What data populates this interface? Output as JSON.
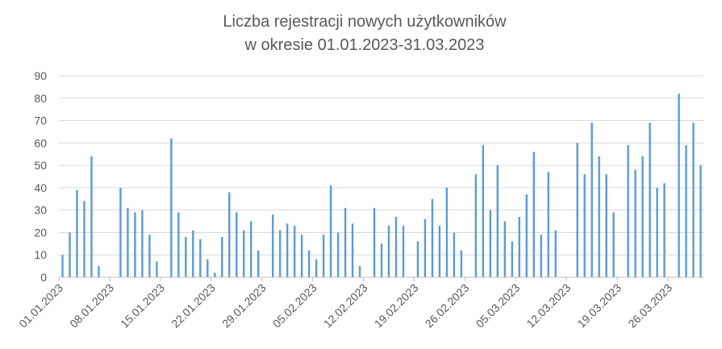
{
  "chart_data": {
    "type": "bar",
    "title_line1": "Liczba rejestracji nowych użytkowników",
    "title_line2": "w okresie 01.01.2023-31.03.2023",
    "xlabel": "",
    "ylabel": "",
    "ylim": [
      0,
      90
    ],
    "yticks": [
      0,
      10,
      20,
      30,
      40,
      50,
      60,
      70,
      80,
      90
    ],
    "grid": true,
    "legend": "none",
    "bar_color": "#5b9bd5",
    "date_start": "01.01.2023",
    "date_end": "31.03.2023",
    "x_tick_labels": [
      "01.01.2023",
      "08.01.2023",
      "15.01.2023",
      "22.01.2023",
      "29.01.2023",
      "05.02.2023",
      "12.02.2023",
      "19.02.2023",
      "26.02.2023",
      "05.03.2023",
      "12.03.2023",
      "19.03.2023",
      "26.03.2023"
    ],
    "values": [
      10,
      20,
      39,
      34,
      54,
      5,
      0,
      0,
      40,
      31,
      29,
      30,
      19,
      7,
      0,
      62,
      29,
      18,
      21,
      17,
      8,
      2,
      18,
      38,
      29,
      21,
      25,
      12,
      0,
      28,
      21,
      24,
      23,
      19,
      12,
      8,
      19,
      41,
      20,
      31,
      24,
      5,
      0,
      31,
      15,
      23,
      27,
      23,
      0,
      16,
      26,
      35,
      23,
      40,
      20,
      12,
      0,
      46,
      59,
      30,
      50,
      25,
      16,
      27,
      37,
      56,
      19,
      47,
      21,
      0,
      0,
      60,
      46,
      69,
      54,
      46,
      29,
      0,
      59,
      48,
      54,
      69,
      40,
      42,
      0,
      82,
      59,
      69,
      50
    ]
  }
}
